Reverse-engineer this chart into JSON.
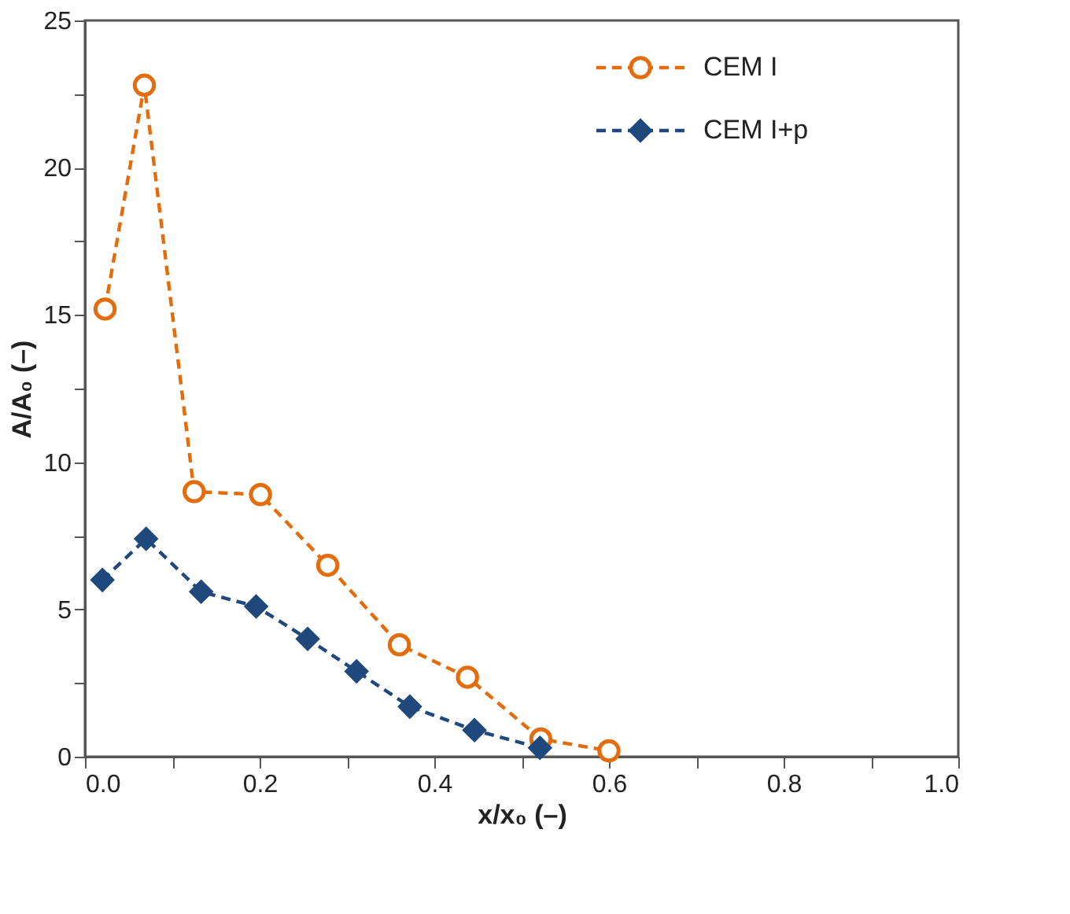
{
  "chart_data": {
    "type": "line",
    "xlabel": "x/x₀ (–)",
    "ylabel": "A/A₀ (–)",
    "xlim": [
      0,
      1
    ],
    "ylim": [
      0,
      25
    ],
    "xticks": [
      {
        "value": 0,
        "label": "0.0"
      },
      {
        "value": 0.1,
        "label": null
      },
      {
        "value": 0.2,
        "label": "0.2"
      },
      {
        "value": 0.3,
        "label": null
      },
      {
        "value": 0.4,
        "label": "0.4"
      },
      {
        "value": 0.5,
        "label": null
      },
      {
        "value": 0.6,
        "label": "0.6"
      },
      {
        "value": 0.7,
        "label": null
      },
      {
        "value": 0.8,
        "label": "0.8"
      },
      {
        "value": 0.9,
        "label": null
      },
      {
        "value": 1.0,
        "label": "1.0"
      }
    ],
    "yticks": [
      0,
      {
        "value": 2.5,
        "label": null
      },
      5,
      {
        "value": 7.5,
        "label": null
      },
      10,
      {
        "value": 12.5,
        "label": null
      },
      15,
      {
        "value": 17.5,
        "label": null
      },
      20,
      {
        "value": 22.5,
        "label": null
      },
      25
    ],
    "grid": false,
    "legend": "top right",
    "line_style": "dashed",
    "series": [
      {
        "name": "CEM I",
        "color": "#e46c0a",
        "marker": "circle",
        "x": [
          0.023,
          0.068,
          0.125,
          0.201,
          0.278,
          0.36,
          0.438,
          0.522,
          0.6
        ],
        "values": [
          15.2,
          22.8,
          9.0,
          8.9,
          6.5,
          3.8,
          2.7,
          0.6,
          0.2
        ]
      },
      {
        "name": "CEM I+p",
        "color": "#1f497d",
        "marker": "diamond",
        "x": [
          0.02,
          0.07,
          0.133,
          0.196,
          0.255,
          0.311,
          0.372,
          0.446,
          0.521
        ],
        "values": [
          6.0,
          7.4,
          5.6,
          5.1,
          4.0,
          2.9,
          1.7,
          0.9,
          0.3
        ]
      }
    ]
  }
}
